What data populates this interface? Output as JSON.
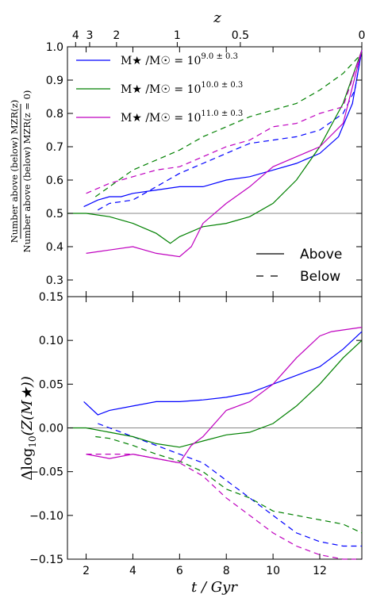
{
  "chart_data": [
    {
      "type": "line",
      "title": "",
      "xlabel": "t / Gyr",
      "ylabel": "Number above (below) MZR(z) / Number above (below) MZR(z=0)",
      "ylabel_numerator": "Number above (below) MZR(z)",
      "ylabel_denominator": "Number above (below) MZR(z = 0)",
      "top_xlabel": "z",
      "top_xticks": [
        {
          "label": "4",
          "t": 1.55
        },
        {
          "label": "3",
          "t": 2.15
        },
        {
          "label": "2",
          "t": 3.3
        },
        {
          "label": "1",
          "t": 5.9
        },
        {
          "label": "0.5",
          "t": 8.6
        },
        {
          "label": "0",
          "t": 13.8
        }
      ],
      "xlim": [
        1.2,
        13.8
      ],
      "ylim": [
        0.25,
        1.0
      ],
      "yticks": [
        "0.3",
        "0.4",
        "0.5",
        "0.6",
        "0.7",
        "0.8",
        "0.9",
        "1.0"
      ],
      "reference_line": 0.5,
      "legend_position": "top-left",
      "legend_style": [
        {
          "label": "Above",
          "style": "solid"
        },
        {
          "label": "Below",
          "style": "dashed"
        }
      ],
      "legend_style_position": "bottom-right",
      "series": [
        {
          "name": "M★ /M☉ = 10^(9.0 ± 0.3)",
          "name_base": "M★ /M☉ = 10",
          "name_exp": "9.0 ± 0.3",
          "color": "#0000ff",
          "style": "solid",
          "x": [
            1.9,
            2.5,
            3.0,
            3.5,
            4.0,
            5.0,
            6.0,
            7.0,
            8.0,
            9.0,
            10.0,
            11.0,
            12.0,
            12.8,
            13.4,
            13.8
          ],
          "y": [
            0.52,
            0.54,
            0.55,
            0.55,
            0.56,
            0.57,
            0.58,
            0.58,
            0.6,
            0.61,
            0.63,
            0.65,
            0.68,
            0.73,
            0.83,
            0.99
          ]
        },
        {
          "name": "",
          "color": "#0000ff",
          "style": "dashed",
          "x": [
            2.5,
            3.0,
            4.0,
            5.0,
            6.0,
            7.0,
            8.0,
            9.0,
            10.0,
            11.0,
            12.0,
            13.0,
            13.5,
            13.8
          ],
          "y": [
            0.51,
            0.53,
            0.54,
            0.58,
            0.62,
            0.65,
            0.68,
            0.71,
            0.72,
            0.73,
            0.75,
            0.8,
            0.87,
            0.99
          ]
        },
        {
          "name": "M★ /M☉ = 10^(10.0 ± 0.3)",
          "name_base": "M★ /M☉ = 10",
          "name_exp": "10.0 ± 0.3",
          "color": "#008000",
          "style": "solid",
          "x": [
            1.2,
            2.0,
            3.0,
            4.0,
            5.0,
            5.6,
            6.0,
            7.0,
            8.0,
            9.0,
            10.0,
            11.0,
            12.0,
            13.0,
            13.8
          ],
          "y": [
            0.5,
            0.5,
            0.49,
            0.47,
            0.44,
            0.41,
            0.43,
            0.46,
            0.47,
            0.49,
            0.53,
            0.6,
            0.7,
            0.83,
            0.99
          ]
        },
        {
          "name": "",
          "color": "#008000",
          "style": "dashed",
          "x": [
            2.4,
            3.0,
            4.0,
            5.0,
            6.0,
            7.0,
            8.0,
            9.0,
            10.0,
            11.0,
            12.0,
            13.0,
            13.8
          ],
          "y": [
            0.55,
            0.58,
            0.63,
            0.66,
            0.69,
            0.73,
            0.76,
            0.79,
            0.81,
            0.83,
            0.87,
            0.92,
            0.98
          ]
        },
        {
          "name": "M★ /M☉ = 10^(11.0 ± 0.3)",
          "name_base": "M★ /M☉ = 10",
          "name_exp": "11.0 ± 0.3",
          "color": "#bf00bf",
          "style": "solid",
          "x": [
            2.0,
            3.0,
            4.0,
            5.0,
            6.0,
            6.5,
            7.0,
            8.0,
            9.0,
            10.0,
            11.0,
            12.0,
            13.0,
            13.8
          ],
          "y": [
            0.38,
            0.39,
            0.4,
            0.38,
            0.37,
            0.4,
            0.47,
            0.53,
            0.58,
            0.64,
            0.67,
            0.7,
            0.77,
            0.99
          ]
        },
        {
          "name": "",
          "color": "#bf00bf",
          "style": "dashed",
          "x": [
            2.0,
            3.0,
            4.0,
            5.0,
            6.0,
            7.0,
            8.0,
            9.0,
            10.0,
            11.0,
            12.0,
            13.0,
            13.8
          ],
          "y": [
            0.56,
            0.59,
            0.61,
            0.63,
            0.64,
            0.67,
            0.7,
            0.72,
            0.76,
            0.77,
            0.8,
            0.82,
            0.99
          ]
        }
      ]
    },
    {
      "type": "line",
      "title": "",
      "xlabel": "t / Gyr",
      "ylabel": "Δlog10(Z(M★))",
      "ylabel_main": "Δlog",
      "ylabel_sub": "10",
      "ylabel_rest": "(Z(M★))",
      "xlim": [
        1.2,
        13.8
      ],
      "ylim": [
        -0.15,
        0.15
      ],
      "xticks": [
        "2",
        "4",
        "6",
        "8",
        "10",
        "12"
      ],
      "yticks": [
        "−0.15",
        "−0.10",
        "−0.05",
        "0.00",
        "0.05",
        "0.10",
        "0.15"
      ],
      "reference_line": 0.0,
      "series": [
        {
          "name": "",
          "color": "#0000ff",
          "style": "solid",
          "x": [
            1.9,
            2.5,
            3.0,
            4.0,
            5.0,
            6.0,
            7.0,
            8.0,
            9.0,
            10.0,
            11.0,
            12.0,
            13.0,
            13.8
          ],
          "y": [
            0.03,
            0.015,
            0.02,
            0.025,
            0.03,
            0.03,
            0.032,
            0.035,
            0.04,
            0.05,
            0.06,
            0.07,
            0.09,
            0.11
          ]
        },
        {
          "name": "",
          "color": "#0000ff",
          "style": "dashed",
          "x": [
            2.5,
            3.0,
            4.0,
            5.0,
            6.0,
            7.0,
            8.0,
            9.0,
            10.0,
            11.0,
            12.0,
            13.0,
            13.8
          ],
          "y": [
            0.005,
            0.0,
            -0.01,
            -0.02,
            -0.03,
            -0.04,
            -0.06,
            -0.08,
            -0.1,
            -0.12,
            -0.13,
            -0.135,
            -0.135
          ]
        },
        {
          "name": "",
          "color": "#008000",
          "style": "solid",
          "x": [
            1.3,
            2.0,
            3.0,
            4.0,
            5.0,
            6.0,
            7.0,
            8.0,
            9.0,
            10.0,
            11.0,
            12.0,
            13.0,
            13.8
          ],
          "y": [
            0.0,
            0.0,
            -0.005,
            -0.01,
            -0.018,
            -0.022,
            -0.015,
            -0.008,
            -0.005,
            0.005,
            0.025,
            0.05,
            0.08,
            0.1
          ]
        },
        {
          "name": "",
          "color": "#008000",
          "style": "dashed",
          "x": [
            2.4,
            3.0,
            4.0,
            5.0,
            6.0,
            7.0,
            8.0,
            9.0,
            10.0,
            11.0,
            12.0,
            13.0,
            13.8
          ],
          "y": [
            -0.01,
            -0.012,
            -0.02,
            -0.03,
            -0.038,
            -0.05,
            -0.07,
            -0.08,
            -0.095,
            -0.1,
            -0.105,
            -0.11,
            -0.12
          ]
        },
        {
          "name": "",
          "color": "#bf00bf",
          "style": "solid",
          "x": [
            2.0,
            3.0,
            4.0,
            5.0,
            6.0,
            6.5,
            7.0,
            8.0,
            9.0,
            10.0,
            11.0,
            12.0,
            12.5,
            13.8
          ],
          "y": [
            -0.03,
            -0.035,
            -0.03,
            -0.035,
            -0.04,
            -0.02,
            -0.01,
            0.02,
            0.03,
            0.05,
            0.08,
            0.105,
            0.11,
            0.115
          ]
        },
        {
          "name": "",
          "color": "#bf00bf",
          "style": "dashed",
          "x": [
            2.0,
            3.0,
            4.0,
            5.0,
            6.0,
            7.0,
            8.0,
            9.0,
            10.0,
            11.0,
            12.0,
            13.0,
            13.8
          ],
          "y": [
            -0.03,
            -0.03,
            -0.03,
            -0.035,
            -0.04,
            -0.055,
            -0.08,
            -0.1,
            -0.12,
            -0.135,
            -0.145,
            -0.15,
            -0.15
          ]
        }
      ]
    }
  ]
}
